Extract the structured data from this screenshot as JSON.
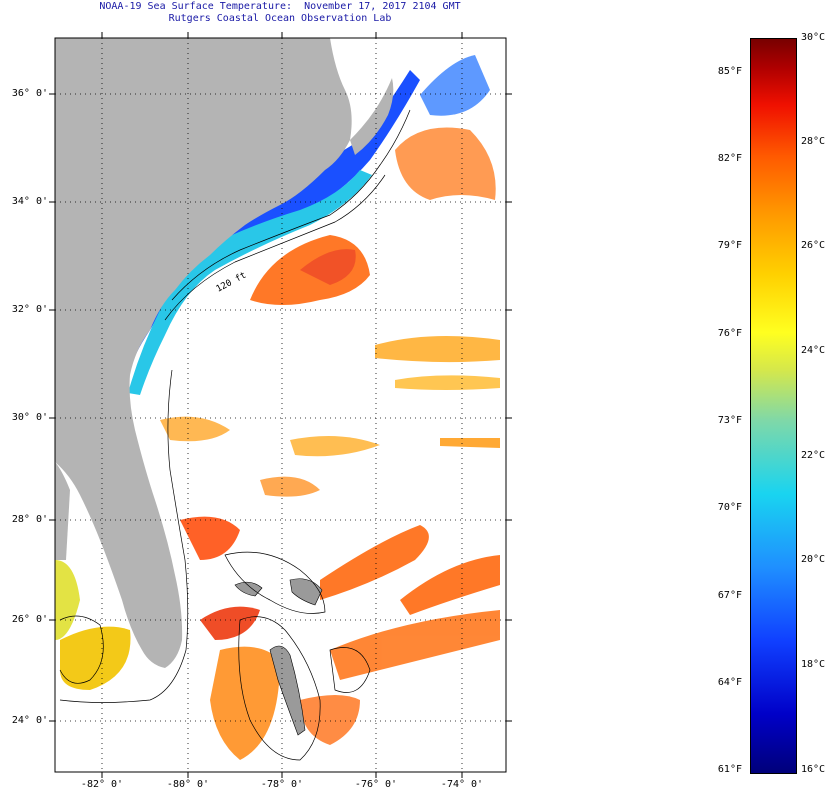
{
  "title": {
    "line1": "NOAA-19 Sea Surface Temperature:  November 17, 2017 2104 GMT",
    "line2": "Rutgers Coastal Ocean Observation Lab"
  },
  "latitude_labels": [
    "36° 0'",
    "34° 0'",
    "32° 0'",
    "30° 0'",
    "28° 0'",
    "26° 0'",
    "24° 0'"
  ],
  "longitude_labels": [
    "-82° 0'",
    "-80° 0'",
    "-78° 0'",
    "-76° 0'",
    "-74° 0'"
  ],
  "colorbar": {
    "fahrenheit_labels": [
      "85°F",
      "82°F",
      "79°F",
      "76°F",
      "73°F",
      "70°F",
      "67°F",
      "64°F",
      "61°F"
    ],
    "celsius_labels": [
      "30°C",
      "28°C",
      "26°C",
      "24°C",
      "22°C",
      "20°C",
      "18°C",
      "16°C"
    ],
    "range_celsius": [
      16,
      30
    ],
    "range_fahrenheit": [
      61,
      86
    ]
  },
  "map": {
    "lat_range": [
      23,
      37
    ],
    "lon_range": [
      -83,
      -72.5
    ],
    "land_color": "#b4b4b4",
    "ocean_color": "#ffffff",
    "isobath_label": "120 ft"
  }
}
